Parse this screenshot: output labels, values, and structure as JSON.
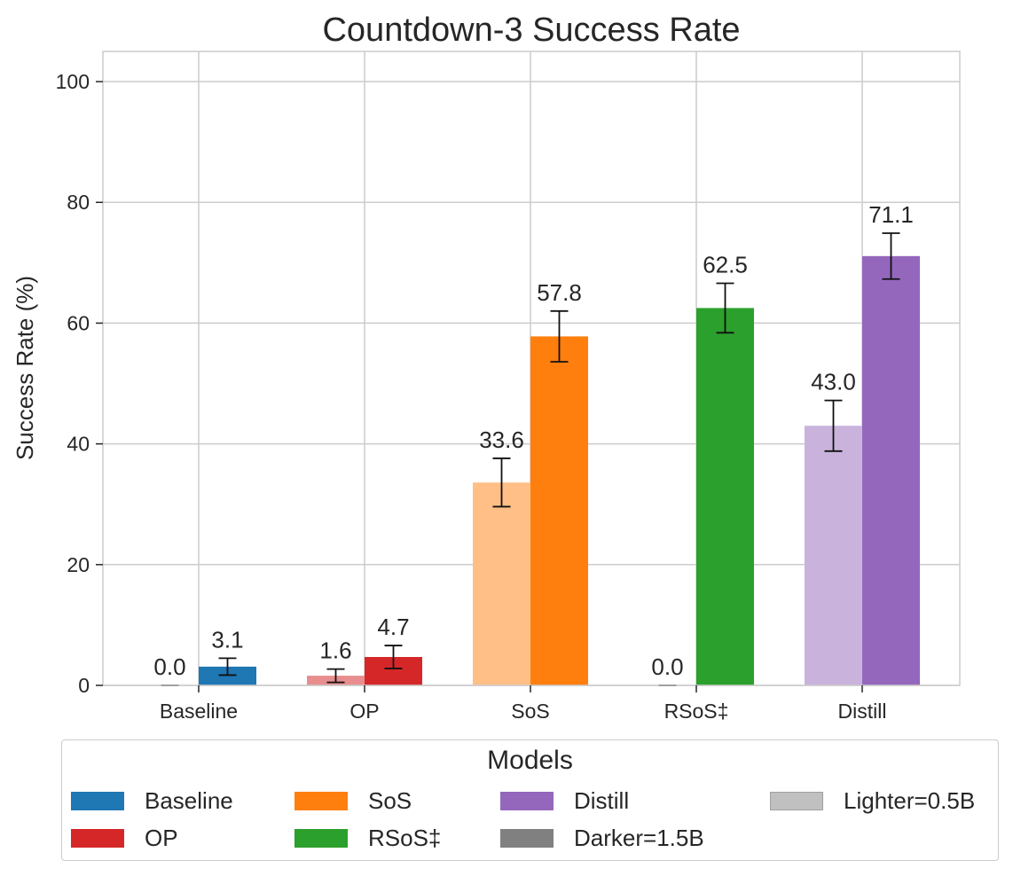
{
  "chart_data": {
    "type": "bar",
    "title": "Countdown-3 Success Rate",
    "xlabel": "",
    "ylabel": "Success Rate (%)",
    "ylim": [
      0,
      105
    ],
    "yticks": [
      0,
      20,
      40,
      60,
      80,
      100
    ],
    "grid": true,
    "categories": [
      "Baseline",
      "OP",
      "SoS",
      "RSoS‡",
      "Distill"
    ],
    "series": [
      {
        "name": "Lighter=0.5B",
        "values": [
          0.0,
          1.6,
          33.6,
          0.0,
          43.0
        ],
        "errors": [
          0.0,
          1.1,
          4.0,
          0.0,
          4.2
        ],
        "colors": [
          "#a6c8e3",
          "#e88e8e",
          "#ffbf86",
          "#95d095",
          "#c9b3dc"
        ]
      },
      {
        "name": "Darker=1.5B",
        "values": [
          3.1,
          4.7,
          57.8,
          62.5,
          71.1
        ],
        "errors": [
          1.4,
          1.9,
          4.2,
          4.1,
          3.8
        ],
        "colors": [
          "#1f77b4",
          "#d62728",
          "#ff7f0e",
          "#2ca02c",
          "#9467bd"
        ]
      }
    ],
    "data_labels": [
      [
        "0.0",
        "1.6",
        "33.6",
        "0.0",
        "43.0"
      ],
      [
        "3.1",
        "4.7",
        "57.8",
        "62.5",
        "71.1"
      ]
    ],
    "legend": {
      "title": "Models",
      "placement": "bottom-center",
      "items": [
        {
          "label": "Baseline",
          "color": "#1f77b4"
        },
        {
          "label": "OP",
          "color": "#d62728"
        },
        {
          "label": "SoS",
          "color": "#ff7f0e"
        },
        {
          "label": "RSoS‡",
          "color": "#2ca02c"
        },
        {
          "label": "Distill",
          "color": "#9467bd"
        },
        {
          "label": "Darker=1.5B",
          "color": "#808080"
        },
        {
          "label": "Lighter=0.5B",
          "color": "#c0c0c0"
        }
      ]
    }
  }
}
